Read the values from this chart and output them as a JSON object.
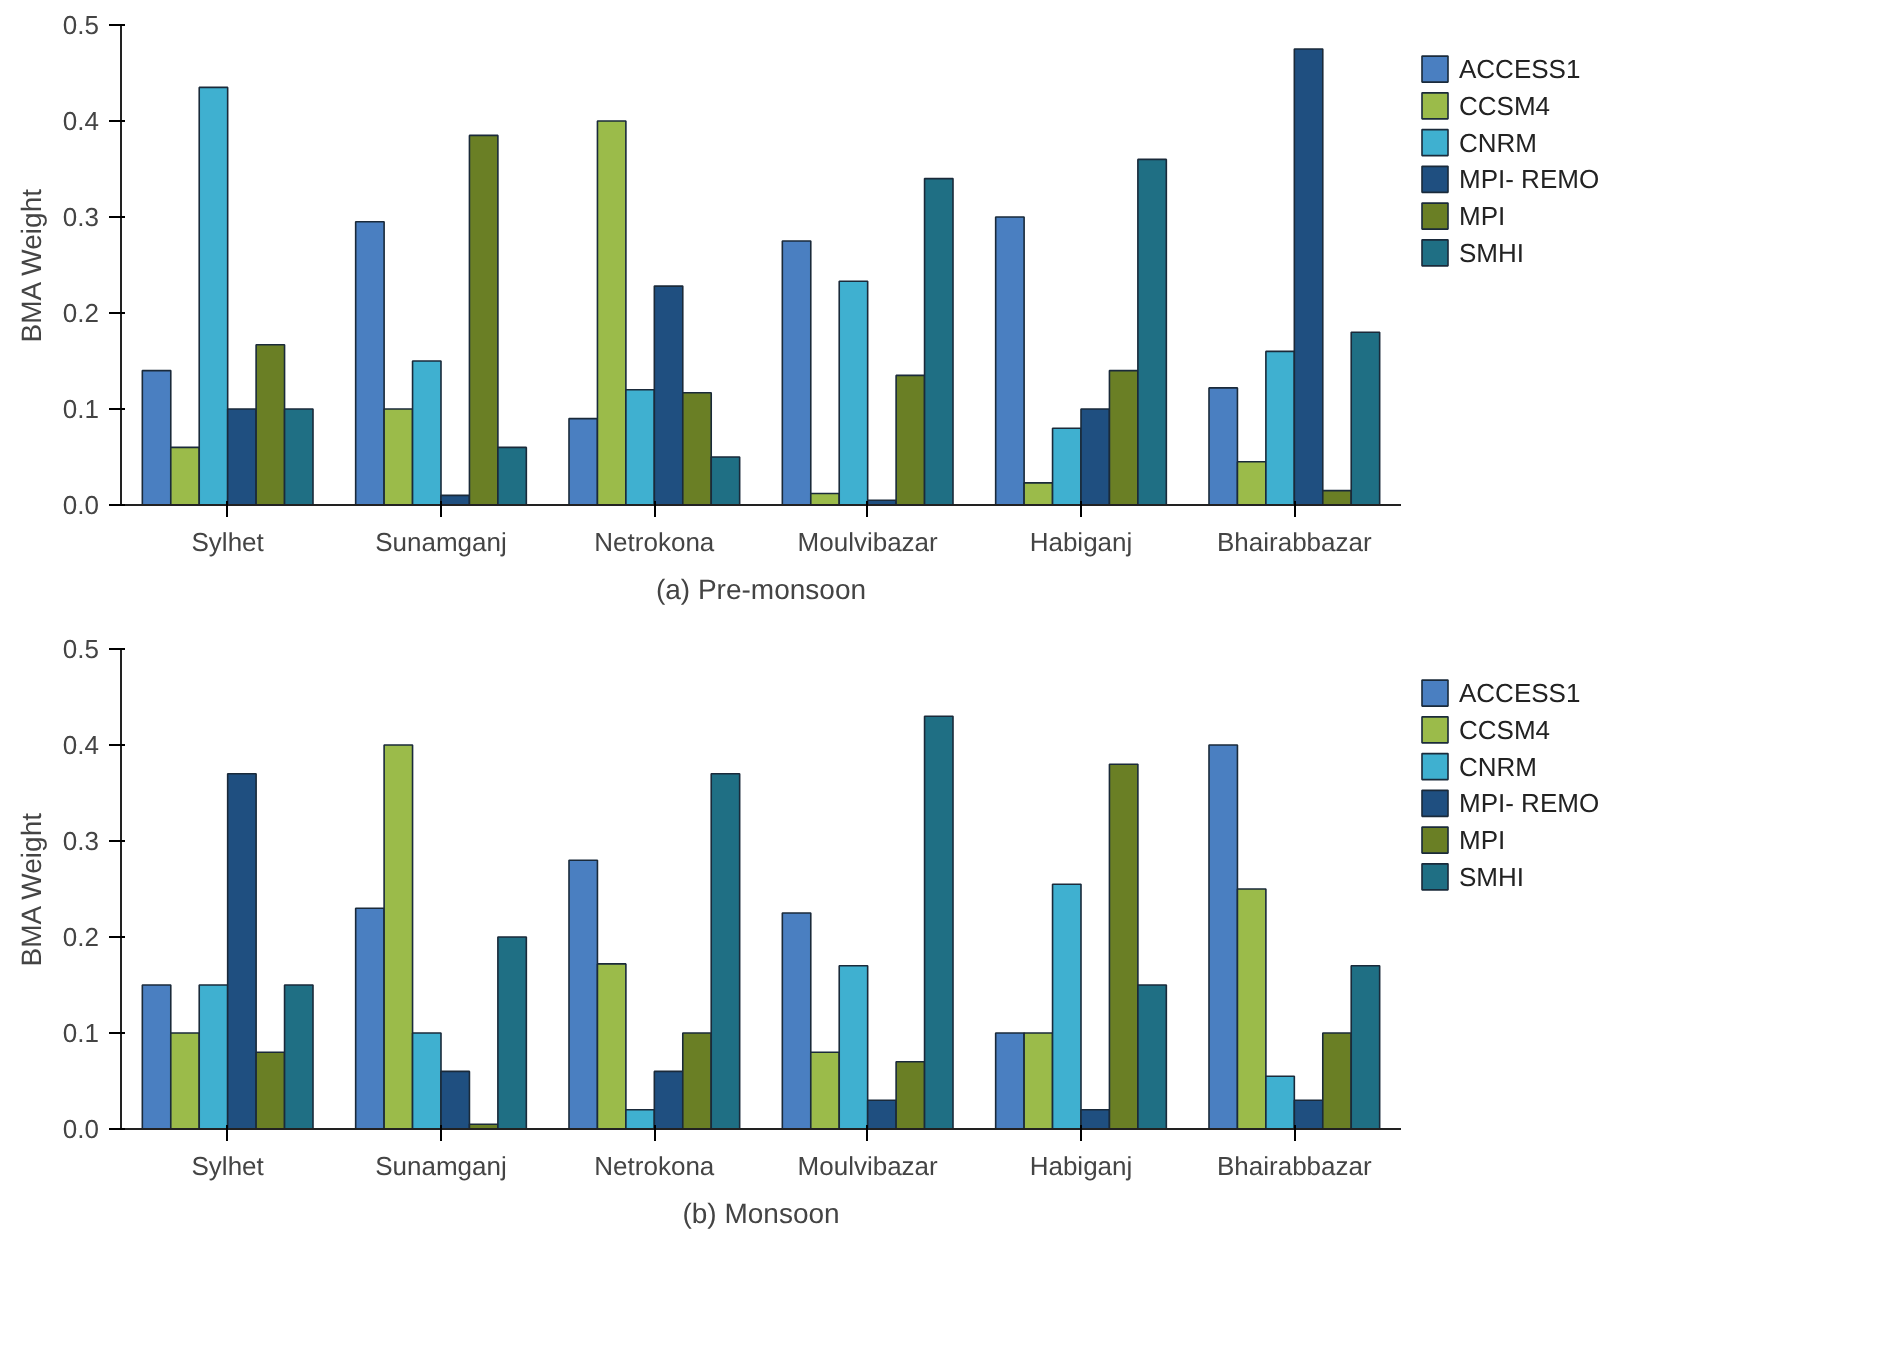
{
  "chart_data": [
    {
      "type": "bar",
      "xlabel": "(a) Pre-monsoon",
      "ylabel": "BMA Weight",
      "categories": [
        "Sylhet",
        "Sunamganj",
        "Netrokona",
        "Moulvibazar",
        "Habiganj",
        "Bhairabbazar"
      ],
      "ylim": [
        0,
        0.5
      ],
      "yticks": [
        {
          "value": 0,
          "label": "0.0"
        },
        0.1,
        0.2,
        0.3,
        0.4,
        0.5
      ],
      "grid": false,
      "legend": "right",
      "series": [
        {
          "name": "ACCESS1",
          "color": "#4a7fc1",
          "values": [
            0.14,
            0.295,
            0.09,
            0.275,
            0.3,
            0.122
          ]
        },
        {
          "name": "CCSM4",
          "color": "#9bbb4a",
          "values": [
            0.06,
            0.1,
            0.4,
            0.012,
            0.023,
            0.045
          ]
        },
        {
          "name": "CNRM",
          "color": "#3fb0d0",
          "values": [
            0.435,
            0.15,
            0.12,
            0.233,
            0.08,
            0.16
          ]
        },
        {
          "name": "MPI- REMO",
          "color": "#1f4f80",
          "values": [
            0.1,
            0.01,
            0.228,
            0.005,
            0.1,
            0.475
          ]
        },
        {
          "name": "MPI",
          "color": "#6a7f25",
          "values": [
            0.167,
            0.385,
            0.117,
            0.135,
            0.14,
            0.015
          ]
        },
        {
          "name": "SMHI",
          "color": "#1f6f84",
          "values": [
            0.1,
            0.06,
            0.05,
            0.34,
            0.36,
            0.18
          ]
        }
      ]
    },
    {
      "type": "bar",
      "xlabel": "(b) Monsoon",
      "ylabel": "BMA Weight",
      "categories": [
        "Sylhet",
        "Sunamganj",
        "Netrokona",
        "Moulvibazar",
        "Habiganj",
        "Bhairabbazar"
      ],
      "ylim": [
        0,
        0.5
      ],
      "yticks": [
        {
          "value": 0,
          "label": "0.0"
        },
        0.1,
        0.2,
        0.3,
        0.4,
        0.5
      ],
      "grid": false,
      "legend": "right",
      "series": [
        {
          "name": "ACCESS1",
          "color": "#4a7fc1",
          "values": [
            0.15,
            0.23,
            0.28,
            0.225,
            0.1,
            0.4
          ]
        },
        {
          "name": "CCSM4",
          "color": "#9bbb4a",
          "values": [
            0.1,
            0.4,
            0.172,
            0.08,
            0.1,
            0.25
          ]
        },
        {
          "name": "CNRM",
          "color": "#3fb0d0",
          "values": [
            0.15,
            0.1,
            0.02,
            0.17,
            0.255,
            0.055
          ]
        },
        {
          "name": "MPI- REMO",
          "color": "#1f4f80",
          "values": [
            0.37,
            0.06,
            0.06,
            0.03,
            0.02,
            0.03
          ]
        },
        {
          "name": "MPI",
          "color": "#6a7f25",
          "values": [
            0.08,
            0.005,
            0.1,
            0.07,
            0.38,
            0.1
          ]
        },
        {
          "name": "SMHI",
          "color": "#1f6f84",
          "values": [
            0.15,
            0.2,
            0.37,
            0.43,
            0.15,
            0.17
          ]
        }
      ]
    }
  ]
}
